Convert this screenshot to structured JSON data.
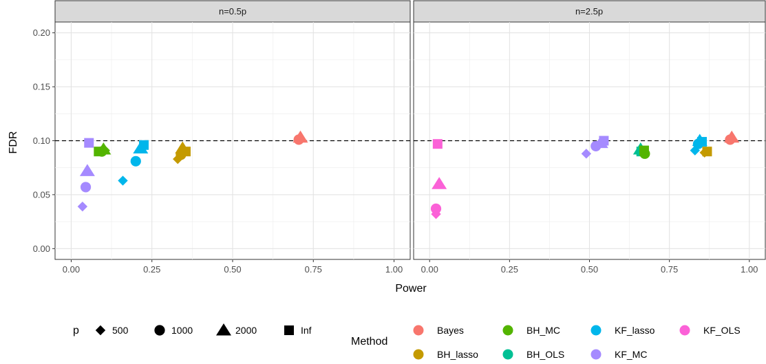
{
  "chart_data": {
    "type": "scatter",
    "xlabel": "Power",
    "ylabel": "FDR",
    "xlim": [
      -0.05,
      1.05
    ],
    "ylim": [
      -0.01,
      0.21
    ],
    "x_ticks": [
      0.0,
      0.25,
      0.5,
      0.75,
      1.0
    ],
    "x_tick_labels": [
      "0.00",
      "0.25",
      "0.50",
      "0.75",
      "1.00"
    ],
    "y_ticks": [
      0.0,
      0.05,
      0.1,
      0.15,
      0.2
    ],
    "y_tick_labels": [
      "0.00",
      "0.05",
      "0.10",
      "0.15",
      "0.20"
    ],
    "reference_line": {
      "y": 0.1,
      "style": "dashed"
    },
    "grid": true,
    "panels": [
      {
        "strip": "n=0.5p",
        "points": [
          {
            "method": "Bayes",
            "p": "2000",
            "x": 0.71,
            "y": 0.103
          },
          {
            "method": "Bayes",
            "p": "1000",
            "x": 0.705,
            "y": 0.101
          },
          {
            "method": "BH_MC",
            "p": "2000",
            "x": 0.1,
            "y": 0.092
          },
          {
            "method": "BH_MC",
            "p": "500",
            "x": 0.105,
            "y": 0.091
          },
          {
            "method": "BH_MC",
            "p": "1000",
            "x": 0.095,
            "y": 0.09
          },
          {
            "method": "BH_MC",
            "p": "Inf",
            "x": 0.085,
            "y": 0.09
          },
          {
            "method": "KF_lasso",
            "p": "500",
            "x": 0.16,
            "y": 0.063
          },
          {
            "method": "KF_lasso",
            "p": "1000",
            "x": 0.2,
            "y": 0.081
          },
          {
            "method": "KF_lasso",
            "p": "2000",
            "x": 0.215,
            "y": 0.093
          },
          {
            "method": "KF_lasso",
            "p": "Inf",
            "x": 0.225,
            "y": 0.096
          },
          {
            "method": "BH_lasso",
            "p": "500",
            "x": 0.33,
            "y": 0.083
          },
          {
            "method": "BH_lasso",
            "p": "1000",
            "x": 0.34,
            "y": 0.087
          },
          {
            "method": "BH_lasso",
            "p": "2000",
            "x": 0.345,
            "y": 0.093
          },
          {
            "method": "BH_lasso",
            "p": "Inf",
            "x": 0.355,
            "y": 0.09
          },
          {
            "method": "KF_MC",
            "p": "500",
            "x": 0.035,
            "y": 0.039
          },
          {
            "method": "KF_MC",
            "p": "1000",
            "x": 0.045,
            "y": 0.057
          },
          {
            "method": "KF_MC",
            "p": "2000",
            "x": 0.05,
            "y": 0.072
          },
          {
            "method": "KF_MC",
            "p": "Inf",
            "x": 0.055,
            "y": 0.098
          }
        ]
      },
      {
        "strip": "n=2.5p",
        "points": [
          {
            "method": "KF_OLS",
            "p": "500",
            "x": 0.02,
            "y": 0.032
          },
          {
            "method": "KF_OLS",
            "p": "1000",
            "x": 0.02,
            "y": 0.037
          },
          {
            "method": "KF_OLS",
            "p": "2000",
            "x": 0.03,
            "y": 0.06
          },
          {
            "method": "KF_OLS",
            "p": "Inf",
            "x": 0.025,
            "y": 0.097
          },
          {
            "method": "KF_MC",
            "p": "500",
            "x": 0.49,
            "y": 0.088
          },
          {
            "method": "KF_MC",
            "p": "1000",
            "x": 0.52,
            "y": 0.095
          },
          {
            "method": "KF_MC",
            "p": "2000",
            "x": 0.535,
            "y": 0.098
          },
          {
            "method": "KF_MC",
            "p": "Inf",
            "x": 0.545,
            "y": 0.1
          },
          {
            "method": "BH_OLS",
            "p": "2000",
            "x": 0.66,
            "y": 0.092
          },
          {
            "method": "BH_OLS",
            "p": "Inf",
            "x": 0.662,
            "y": 0.09
          },
          {
            "method": "BH_MC",
            "p": "500",
            "x": 0.672,
            "y": 0.089
          },
          {
            "method": "BH_MC",
            "p": "1000",
            "x": 0.673,
            "y": 0.088
          },
          {
            "method": "BH_MC",
            "p": "Inf",
            "x": 0.671,
            "y": 0.091
          },
          {
            "method": "KF_lasso",
            "p": "500",
            "x": 0.83,
            "y": 0.091
          },
          {
            "method": "KF_lasso",
            "p": "1000",
            "x": 0.84,
            "y": 0.097
          },
          {
            "method": "KF_lasso",
            "p": "2000",
            "x": 0.845,
            "y": 0.1
          },
          {
            "method": "KF_lasso",
            "p": "Inf",
            "x": 0.852,
            "y": 0.099
          },
          {
            "method": "BH_lasso",
            "p": "500",
            "x": 0.86,
            "y": 0.089
          },
          {
            "method": "BH_lasso",
            "p": "Inf",
            "x": 0.868,
            "y": 0.09
          },
          {
            "method": "Bayes",
            "p": "1000",
            "x": 0.94,
            "y": 0.101
          },
          {
            "method": "Bayes",
            "p": "2000",
            "x": 0.945,
            "y": 0.103
          }
        ]
      }
    ],
    "legends": {
      "shape": {
        "title": "p",
        "items": [
          {
            "label": "500",
            "shape": "diamond"
          },
          {
            "label": "1000",
            "shape": "circle"
          },
          {
            "label": "2000",
            "shape": "triangle"
          },
          {
            "label": "Inf",
            "shape": "square"
          }
        ]
      },
      "color": {
        "title": "Method",
        "items": [
          {
            "label": "Bayes",
            "color": "#F8766D"
          },
          {
            "label": "BH_lasso",
            "color": "#C49A00"
          },
          {
            "label": "BH_MC",
            "color": "#53B400"
          },
          {
            "label": "BH_OLS",
            "color": "#00C094"
          },
          {
            "label": "KF_lasso",
            "color": "#00B6EB"
          },
          {
            "label": "KF_MC",
            "color": "#A58AFF"
          },
          {
            "label": "KF_OLS",
            "color": "#FB61D7"
          }
        ]
      }
    }
  }
}
